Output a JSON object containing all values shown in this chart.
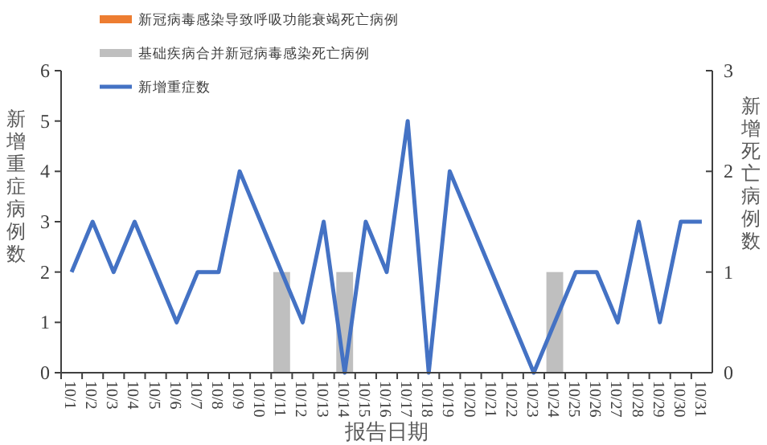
{
  "chart_data": {
    "type": "bar",
    "xlabel": "报告日期",
    "ylabel": "新增重症病例数",
    "y2label": "新增死亡病例数",
    "categories": [
      "10/1",
      "10/2",
      "10/3",
      "10/4",
      "10/5",
      "10/6",
      "10/7",
      "10/8",
      "10/9",
      "10/10",
      "10/11",
      "10/12",
      "10/13",
      "10/14",
      "10/15",
      "10/16",
      "10/17",
      "10/18",
      "10/19",
      "10/20",
      "10/21",
      "10/22",
      "10/23",
      "10/24",
      "10/25",
      "10/26",
      "10/27",
      "10/28",
      "10/29",
      "10/30",
      "10/31"
    ],
    "series": [
      {
        "name": "新冠病毒感染导致呼吸功能衰竭死亡病例",
        "axis": "y2",
        "color": "#ed7d31",
        "values": [
          0,
          0,
          0,
          0,
          0,
          0,
          0,
          0,
          0,
          0,
          0,
          0,
          0,
          0,
          0,
          0,
          0,
          0,
          0,
          0,
          0,
          0,
          0,
          0,
          0,
          0,
          0,
          0,
          0,
          0,
          0
        ]
      },
      {
        "name": "基础疾病合并新冠病毒感染死亡病例",
        "axis": "y2",
        "color": "#bfbfbf",
        "values": [
          0,
          0,
          0,
          0,
          0,
          0,
          0,
          0,
          0,
          0,
          1,
          0,
          0,
          1,
          0,
          0,
          0,
          0,
          0,
          0,
          0,
          0,
          0,
          1,
          0,
          0,
          0,
          0,
          0,
          0,
          0
        ]
      },
      {
        "name": "新增重症数",
        "type": "line",
        "color": "#4472c4",
        "values": [
          2,
          3,
          2,
          3,
          2,
          1,
          2,
          2,
          4,
          3,
          2,
          1,
          3,
          0,
          3,
          2,
          5,
          0,
          4,
          3,
          2,
          1,
          0,
          1,
          2,
          2,
          1,
          3,
          1,
          3,
          3
        ]
      }
    ],
    "stacked": true,
    "ylim": [
      0,
      6
    ],
    "yticks": [
      0,
      1,
      2,
      3,
      4,
      5,
      6
    ],
    "y2lim": [
      0,
      3
    ],
    "y2ticks": [
      0,
      1,
      2,
      3
    ],
    "legend": "top left",
    "grid": false,
    "marker": "none",
    "line_style": "solid"
  }
}
